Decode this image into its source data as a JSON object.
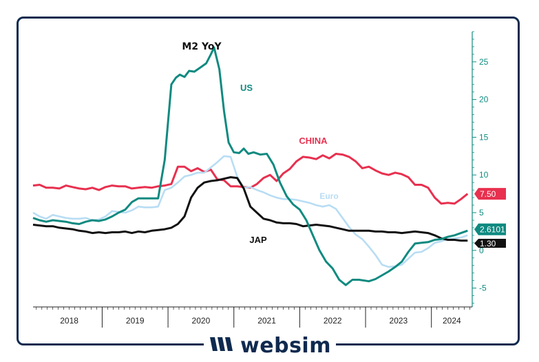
{
  "brand": {
    "name": "websim",
    "logo_icon": "websim-logo-icon",
    "color": "#0f2a4f"
  },
  "chart_data": {
    "type": "line",
    "title": "M2 YoY",
    "xlabel": "",
    "ylabel": "",
    "ylim": [
      -7.5,
      29
    ],
    "xlim": [
      2017.95,
      2024.62
    ],
    "yticks": [
      -5,
      0,
      5,
      10,
      15,
      20,
      25
    ],
    "ytick_labels": [
      "-5",
      "0",
      "5",
      "10",
      "15",
      "20",
      "25"
    ],
    "year_labels": [
      "2018",
      "2019",
      "2020",
      "2021",
      "2022",
      "2023",
      "2024"
    ],
    "grid": false,
    "series": [
      {
        "name": "US",
        "label": "US",
        "color": "#0f8a80",
        "last_value_label": "2.6101",
        "x": [
          2017.95,
          2018.05,
          2018.15,
          2018.25,
          2018.35,
          2018.45,
          2018.55,
          2018.65,
          2018.75,
          2018.85,
          2018.95,
          2019.05,
          2019.15,
          2019.25,
          2019.35,
          2019.45,
          2019.55,
          2019.65,
          2019.75,
          2019.85,
          2019.95,
          2020.05,
          2020.12,
          2020.18,
          2020.25,
          2020.32,
          2020.4,
          2020.5,
          2020.58,
          2020.65,
          2020.7,
          2020.78,
          2020.85,
          2020.92,
          2021.0,
          2021.08,
          2021.15,
          2021.22,
          2021.3,
          2021.4,
          2021.5,
          2021.6,
          2021.7,
          2021.8,
          2021.9,
          2022.0,
          2022.1,
          2022.2,
          2022.3,
          2022.4,
          2022.5,
          2022.6,
          2022.7,
          2022.8,
          2022.9,
          2022.98,
          2023.05,
          2023.15,
          2023.25,
          2023.35,
          2023.45,
          2023.55,
          2023.65,
          2023.75,
          2023.85,
          2023.95,
          2024.05,
          2024.15,
          2024.25,
          2024.35,
          2024.45,
          2024.55
        ],
        "values": [
          4.3,
          4.0,
          3.8,
          4.0,
          3.9,
          3.8,
          3.6,
          3.5,
          3.8,
          4.0,
          3.9,
          4.1,
          4.5,
          5.0,
          5.4,
          6.4,
          6.9,
          6.9,
          6.9,
          6.9,
          12.0,
          22.0,
          22.9,
          23.3,
          23.0,
          23.8,
          23.7,
          24.3,
          24.8,
          26.0,
          26.9,
          24.0,
          18.5,
          14.3,
          13.0,
          12.9,
          13.5,
          12.8,
          13.0,
          12.7,
          12.8,
          11.4,
          9.0,
          7.2,
          6.1,
          5.4,
          4.0,
          2.0,
          0.0,
          -1.5,
          -2.4,
          -3.9,
          -4.6,
          -3.9,
          -3.9,
          -4.0,
          -4.1,
          -3.8,
          -3.3,
          -2.8,
          -2.2,
          -1.5,
          -0.2,
          0.9,
          1.0,
          1.1,
          1.4,
          1.5,
          1.8,
          2.0,
          2.3,
          2.61
        ]
      },
      {
        "name": "CHINA",
        "label": "CHINA",
        "color": "#e8304f",
        "last_value_label": "7.50",
        "x": [
          2017.95,
          2018.05,
          2018.15,
          2018.25,
          2018.35,
          2018.45,
          2018.55,
          2018.65,
          2018.75,
          2018.85,
          2018.95,
          2019.05,
          2019.15,
          2019.25,
          2019.35,
          2019.45,
          2019.55,
          2019.65,
          2019.75,
          2019.85,
          2019.95,
          2020.05,
          2020.15,
          2020.25,
          2020.35,
          2020.45,
          2020.55,
          2020.65,
          2020.75,
          2020.85,
          2020.95,
          2021.05,
          2021.15,
          2021.25,
          2021.35,
          2021.45,
          2021.55,
          2021.65,
          2021.75,
          2021.85,
          2021.95,
          2022.05,
          2022.15,
          2022.25,
          2022.35,
          2022.45,
          2022.55,
          2022.65,
          2022.75,
          2022.85,
          2022.95,
          2023.05,
          2023.15,
          2023.25,
          2023.35,
          2023.45,
          2023.55,
          2023.65,
          2023.75,
          2023.85,
          2023.95,
          2024.05,
          2024.15,
          2024.25,
          2024.35,
          2024.45,
          2024.55
        ],
        "values": [
          8.6,
          8.7,
          8.3,
          8.3,
          8.2,
          8.6,
          8.4,
          8.2,
          8.1,
          8.3,
          8.0,
          8.4,
          8.6,
          8.5,
          8.5,
          8.2,
          8.3,
          8.4,
          8.3,
          8.5,
          8.6,
          8.8,
          11.1,
          11.1,
          10.5,
          10.9,
          10.4,
          10.7,
          9.4,
          9.3,
          8.5,
          8.5,
          8.4,
          8.3,
          8.8,
          9.6,
          10.0,
          9.2,
          10.2,
          10.8,
          11.8,
          12.4,
          12.3,
          12.1,
          12.6,
          12.2,
          12.8,
          12.7,
          12.4,
          11.8,
          10.9,
          11.1,
          10.6,
          10.2,
          10.0,
          10.3,
          10.1,
          9.7,
          8.7,
          8.7,
          8.3,
          7.0,
          6.2,
          6.3,
          6.2,
          6.8,
          7.5
        ]
      },
      {
        "name": "Euro",
        "label": "Euro",
        "color": "#b8ddf4",
        "x": [
          2017.95,
          2018.05,
          2018.15,
          2018.25,
          2018.35,
          2018.45,
          2018.55,
          2018.65,
          2018.75,
          2018.85,
          2018.95,
          2019.05,
          2019.15,
          2019.25,
          2019.35,
          2019.45,
          2019.55,
          2019.65,
          2019.75,
          2019.85,
          2019.95,
          2020.05,
          2020.15,
          2020.25,
          2020.35,
          2020.45,
          2020.55,
          2020.65,
          2020.75,
          2020.85,
          2020.95,
          2021.05,
          2021.15,
          2021.25,
          2021.35,
          2021.45,
          2021.55,
          2021.65,
          2021.75,
          2021.85,
          2021.95,
          2022.05,
          2022.15,
          2022.25,
          2022.35,
          2022.45,
          2022.55,
          2022.65,
          2022.75,
          2022.85,
          2022.95,
          2023.05,
          2023.15,
          2023.25,
          2023.35,
          2023.45,
          2023.55,
          2023.65,
          2023.75,
          2023.85,
          2023.95,
          2024.05,
          2024.15,
          2024.25,
          2024.35,
          2024.45,
          2024.55
        ],
        "values": [
          5.0,
          4.5,
          4.2,
          4.7,
          4.5,
          4.3,
          4.2,
          4.2,
          4.3,
          4.0,
          4.1,
          4.5,
          5.2,
          5.1,
          5.0,
          5.3,
          5.8,
          5.7,
          5.7,
          5.8,
          8.0,
          8.3,
          9.0,
          9.8,
          10.0,
          10.3,
          10.3,
          11.0,
          11.7,
          12.5,
          12.4,
          9.8,
          8.3,
          8.4,
          8.0,
          7.7,
          7.3,
          7.0,
          6.8,
          6.8,
          6.7,
          6.5,
          6.3,
          6.0,
          5.8,
          6.0,
          5.5,
          4.3,
          3.1,
          2.1,
          1.5,
          0.5,
          -0.6,
          -1.9,
          -2.2,
          -2.1,
          -1.9,
          -1.1,
          -0.3,
          -0.2,
          0.3,
          1.0,
          1.2,
          1.5,
          1.6,
          1.7,
          2.0
        ]
      },
      {
        "name": "JAP",
        "label": "JAP",
        "color": "#111111",
        "last_value_label": "1.30",
        "x": [
          2017.95,
          2018.05,
          2018.15,
          2018.25,
          2018.35,
          2018.45,
          2018.55,
          2018.65,
          2018.75,
          2018.85,
          2018.95,
          2019.05,
          2019.15,
          2019.25,
          2019.35,
          2019.45,
          2019.55,
          2019.65,
          2019.75,
          2019.85,
          2019.95,
          2020.05,
          2020.15,
          2020.25,
          2020.35,
          2020.45,
          2020.55,
          2020.65,
          2020.75,
          2020.85,
          2020.95,
          2021.05,
          2021.15,
          2021.25,
          2021.35,
          2021.45,
          2021.55,
          2021.65,
          2021.75,
          2021.85,
          2021.95,
          2022.05,
          2022.15,
          2022.25,
          2022.35,
          2022.45,
          2022.55,
          2022.65,
          2022.75,
          2022.85,
          2022.95,
          2023.05,
          2023.15,
          2023.25,
          2023.35,
          2023.45,
          2023.55,
          2023.65,
          2023.75,
          2023.85,
          2023.95,
          2024.05,
          2024.15,
          2024.25,
          2024.35,
          2024.45,
          2024.55
        ],
        "values": [
          3.4,
          3.3,
          3.2,
          3.2,
          3.0,
          2.9,
          2.8,
          2.6,
          2.5,
          2.3,
          2.4,
          2.3,
          2.4,
          2.4,
          2.5,
          2.3,
          2.5,
          2.4,
          2.6,
          2.7,
          2.8,
          3.0,
          3.5,
          4.5,
          7.0,
          8.3,
          9.0,
          9.2,
          9.3,
          9.5,
          9.7,
          9.6,
          8.2,
          5.8,
          5.0,
          4.2,
          4.0,
          3.7,
          3.6,
          3.6,
          3.5,
          3.2,
          3.3,
          3.4,
          3.3,
          3.2,
          3.0,
          2.8,
          2.6,
          2.6,
          2.6,
          2.6,
          2.5,
          2.5,
          2.4,
          2.4,
          2.3,
          2.4,
          2.5,
          2.4,
          2.3,
          2.0,
          1.6,
          1.4,
          1.4,
          1.3,
          1.3
        ]
      }
    ]
  }
}
